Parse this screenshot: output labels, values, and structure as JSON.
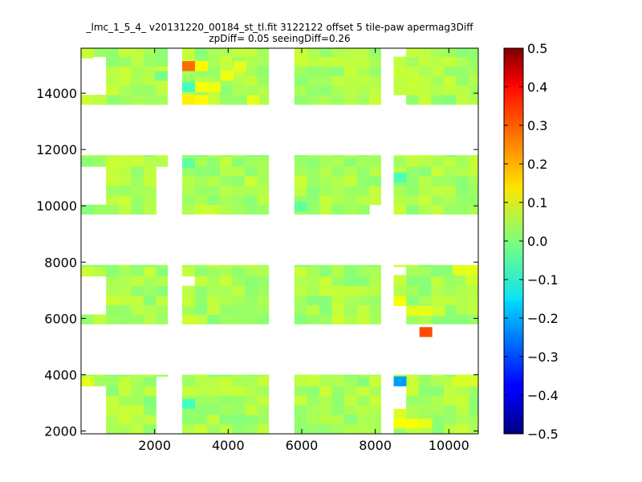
{
  "chart_data": {
    "type": "heatmap",
    "title": "_lmc_1_5_4_ v20131220_00184_st_tl.fit 3122122 offset 5 tile-paw apermag3Diff",
    "subtitle": "zpDiff= 0.05 seeingDiff=0.26",
    "xlim": [
      0,
      10800
    ],
    "ylim": [
      1900,
      15600
    ],
    "xticks": [
      2000,
      4000,
      6000,
      8000,
      10000
    ],
    "yticks": [
      2000,
      4000,
      6000,
      8000,
      10000,
      12000,
      14000
    ],
    "colorbar": {
      "colormap": "jet",
      "range": [
        -0.5,
        0.5
      ],
      "ticks": [
        "0.5",
        "0.4",
        "0.3",
        "0.2",
        "0.1",
        "0.0",
        "−0.1",
        "−0.2",
        "−0.3",
        "−0.4",
        "−0.5"
      ]
    },
    "grid": false,
    "legend": "none",
    "background_value": 0.04,
    "cell_size": [
      340,
      340
    ],
    "blocks": [
      {
        "x": [
          0,
          2350
        ],
        "y": [
          13600,
          15600
        ]
      },
      {
        "x": [
          2750,
          5100
        ],
        "y": [
          13600,
          15600
        ]
      },
      {
        "x": [
          5800,
          8150
        ],
        "y": [
          13600,
          15600
        ]
      },
      {
        "x": [
          8500,
          10800
        ],
        "y": [
          13600,
          15600
        ]
      },
      {
        "x": [
          0,
          2350
        ],
        "y": [
          9700,
          11800
        ]
      },
      {
        "x": [
          2750,
          5100
        ],
        "y": [
          9700,
          11800
        ]
      },
      {
        "x": [
          5800,
          8150
        ],
        "y": [
          9700,
          11800
        ]
      },
      {
        "x": [
          8500,
          10800
        ],
        "y": [
          9700,
          11800
        ]
      },
      {
        "x": [
          0,
          2350
        ],
        "y": [
          5800,
          7900
        ]
      },
      {
        "x": [
          2750,
          5100
        ],
        "y": [
          5800,
          7900
        ]
      },
      {
        "x": [
          5800,
          8150
        ],
        "y": [
          5800,
          7900
        ]
      },
      {
        "x": [
          8500,
          10800
        ],
        "y": [
          5800,
          7900
        ]
      },
      {
        "x": [
          0,
          2350
        ],
        "y": [
          1900,
          4000
        ]
      },
      {
        "x": [
          2750,
          5100
        ],
        "y": [
          1900,
          4000
        ]
      },
      {
        "x": [
          5800,
          8150
        ],
        "y": [
          1900,
          4000
        ]
      },
      {
        "x": [
          8500,
          10800
        ],
        "y": [
          1900,
          4000
        ]
      }
    ],
    "gaps": [
      {
        "x": [
          0,
          700
        ],
        "y": [
          14050,
          15200
        ]
      },
      {
        "x": [
          0,
          700
        ],
        "y": [
          10150,
          11350
        ]
      },
      {
        "x": [
          0,
          700
        ],
        "y": [
          6200,
          7400
        ]
      },
      {
        "x": [
          0,
          700
        ],
        "y": [
          1900,
          3600
        ]
      },
      {
        "x": [
          2000,
          2350
        ],
        "y": [
          9700,
          11400
        ]
      },
      {
        "x": [
          2000,
          2350
        ],
        "y": [
          1900,
          4000
        ]
      },
      {
        "x": [
          2750,
          3100
        ],
        "y": [
          7150,
          7500
        ]
      },
      {
        "x": [
          7800,
          8150
        ],
        "y": [
          9700,
          10150
        ]
      },
      {
        "x": [
          8150,
          8500
        ],
        "y": [
          11400,
          11800
        ]
      },
      {
        "x": [
          8150,
          8500
        ],
        "y": [
          13600,
          14000
        ]
      },
      {
        "x": [
          8500,
          8850
        ],
        "y": [
          15200,
          15600
        ]
      },
      {
        "x": [
          8500,
          8850
        ],
        "y": [
          13600,
          14000
        ]
      },
      {
        "x": [
          8500,
          8850
        ],
        "y": [
          2600,
          3600
        ]
      },
      {
        "x": [
          8500,
          8850
        ],
        "y": [
          5800,
          6450
        ]
      },
      {
        "x": [
          8500,
          8850
        ],
        "y": [
          7550,
          7900
        ]
      }
    ],
    "highlight_cells": [
      {
        "x": 2750,
        "y": 14800,
        "value": 0.27
      },
      {
        "x": 2750,
        "y": 14050,
        "value": -0.06
      },
      {
        "x": 2750,
        "y": 13600,
        "value": 0.14
      },
      {
        "x": 3100,
        "y": 13600,
        "value": 0.13
      },
      {
        "x": 3100,
        "y": 14050,
        "value": 0.12
      },
      {
        "x": 3450,
        "y": 14050,
        "value": 0.11
      },
      {
        "x": 3100,
        "y": 14800,
        "value": 0.13
      },
      {
        "x": 3800,
        "y": 14450,
        "value": 0.11
      },
      {
        "x": 4150,
        "y": 14800,
        "value": 0.1
      },
      {
        "x": 4500,
        "y": 13600,
        "value": 0.1
      },
      {
        "x": 2750,
        "y": 2800,
        "value": -0.06
      },
      {
        "x": 8500,
        "y": 3600,
        "value": -0.22
      },
      {
        "x": 9200,
        "y": 5350,
        "value": 0.3
      },
      {
        "x": 8500,
        "y": 2100,
        "value": 0.12
      },
      {
        "x": 8850,
        "y": 2100,
        "value": 0.12
      },
      {
        "x": 9200,
        "y": 2100,
        "value": 0.1
      },
      {
        "x": 8500,
        "y": 2450,
        "value": 0.09
      },
      {
        "x": 0,
        "y": 3600,
        "value": 0.1
      },
      {
        "x": 10100,
        "y": 3600,
        "value": 0.09
      },
      {
        "x": 10450,
        "y": 3600,
        "value": 0.09
      },
      {
        "x": 8500,
        "y": 6450,
        "value": 0.12
      },
      {
        "x": 8850,
        "y": 6100,
        "value": 0.1
      },
      {
        "x": 9200,
        "y": 6100,
        "value": 0.1
      },
      {
        "x": 9550,
        "y": 6100,
        "value": 0.08
      },
      {
        "x": 10100,
        "y": 7550,
        "value": 0.1
      },
      {
        "x": 10450,
        "y": 7550,
        "value": 0.1
      },
      {
        "x": 10450,
        "y": 7200,
        "value": 0.08
      },
      {
        "x": 8500,
        "y": 7200,
        "value": 0.07
      },
      {
        "x": 2750,
        "y": 11350,
        "value": -0.03
      },
      {
        "x": 8500,
        "y": 10850,
        "value": -0.05
      },
      {
        "x": 5800,
        "y": 9800,
        "value": -0.03
      },
      {
        "x": 2750,
        "y": 6450,
        "value": 0.07
      },
      {
        "x": 2750,
        "y": 5800,
        "value": 0.08
      },
      {
        "x": 0,
        "y": 15250,
        "value": 0.07
      },
      {
        "x": 350,
        "y": 13600,
        "value": 0.06
      },
      {
        "x": 2000,
        "y": 14450,
        "value": -0.01
      }
    ]
  }
}
